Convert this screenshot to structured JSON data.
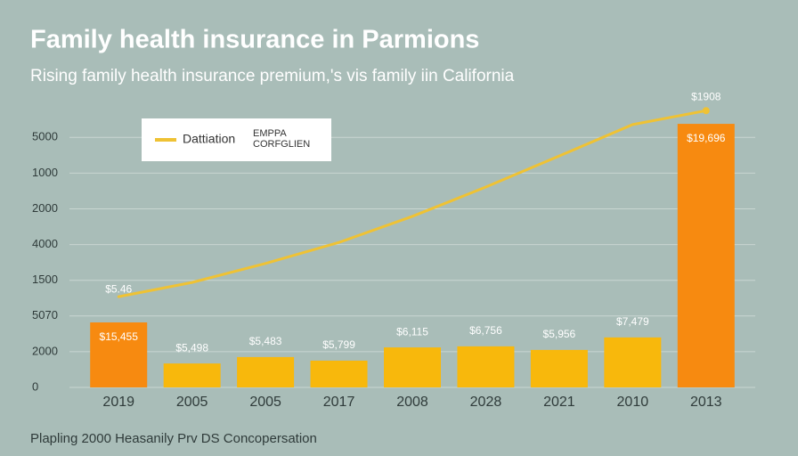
{
  "chart_data": {
    "type": "bar",
    "title": "Family health insurance in Parmions",
    "subtitle": "Rising family health insurance premium,'s vis family iin California",
    "footer": "Plapling 2000 Heasanily Prv DS Concopersation",
    "categories": [
      "2019",
      "2005",
      "2005",
      "2017",
      "2008",
      "2028",
      "2021",
      "2010",
      "2013"
    ],
    "values": [
      1.82,
      0.67,
      0.85,
      0.75,
      1.12,
      1.15,
      1.05,
      1.4,
      7.38
    ],
    "colors": [
      "#f78a10",
      "#f8b80c",
      "#f8b80c",
      "#f8b80c",
      "#f8b80c",
      "#f8b80c",
      "#f8b80c",
      "#f8b80c",
      "#f78a10"
    ],
    "bar_labels": [
      "$15,455",
      "$5,498",
      "$5,483",
      "$5,799",
      "$6,115",
      "$6,756",
      "$5,956",
      "$7,479",
      "$19,696"
    ],
    "line": {
      "name": "Dattiation",
      "color": "#efc234",
      "values": [
        2.54,
        2.94,
        3.47,
        4.06,
        4.79,
        5.61,
        6.48,
        7.36,
        7.75
      ],
      "start_label": "$5.46",
      "end_label": "$1908"
    },
    "legend_note": [
      "EMPPA",
      "CORFGLIEN"
    ],
    "ylim": [
      0,
      8
    ],
    "yticks": [
      {
        "value": 0,
        "label": "0"
      },
      {
        "value": 1,
        "label": "2000"
      },
      {
        "value": 2,
        "label": "5070"
      },
      {
        "value": 3,
        "label": "1500"
      },
      {
        "value": 4,
        "label": "4000"
      },
      {
        "value": 5,
        "label": "2000"
      },
      {
        "value": 6,
        "label": "1000"
      },
      {
        "value": 7,
        "label": "5000"
      }
    ],
    "grid": true
  }
}
